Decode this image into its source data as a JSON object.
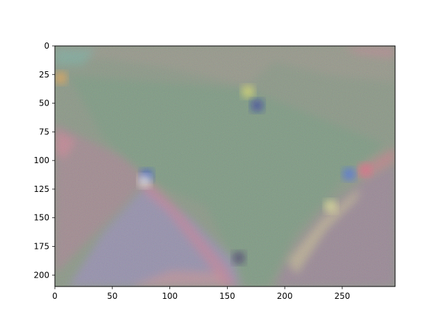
{
  "chart_data": {
    "type": "heatmap",
    "title": "",
    "xlabel": "",
    "ylabel": "",
    "xlim": [
      0,
      296
    ],
    "ylim": [
      210,
      0
    ],
    "x_ticks": [
      0,
      50,
      100,
      150,
      200,
      250
    ],
    "y_ticks": [
      0,
      25,
      50,
      75,
      100,
      125,
      150,
      175,
      200
    ],
    "grid": false,
    "legend": "none",
    "image": {
      "width": 296,
      "height": 210,
      "base_color": "#7f8f7a",
      "regions": [
        {
          "name": "upper-band",
          "color": "#8d8f7f"
        },
        {
          "name": "central-green-triangle",
          "color": "#6f9276"
        },
        {
          "name": "left-mauve-dome",
          "color": "#9a7f86"
        },
        {
          "name": "lower-left-blue-violet",
          "color": "#8c86a8"
        },
        {
          "name": "right-lower-dome",
          "color": "#917c8c"
        }
      ],
      "accents": [
        {
          "x": 5,
          "y": 28,
          "color": "#f0a23a"
        },
        {
          "x": 168,
          "y": 40,
          "color": "#e8e65a"
        },
        {
          "x": 176,
          "y": 52,
          "color": "#0a1f9a"
        },
        {
          "x": 80,
          "y": 113,
          "color": "#1a3cd8"
        },
        {
          "x": 78,
          "y": 118,
          "color": "#f5f5f0"
        },
        {
          "x": 256,
          "y": 112,
          "color": "#2d5cf0"
        },
        {
          "x": 270,
          "y": 108,
          "color": "#e85a78"
        },
        {
          "x": 160,
          "y": 185,
          "color": "#2a1a5a"
        },
        {
          "x": 240,
          "y": 140,
          "color": "#f0f090"
        }
      ]
    }
  }
}
